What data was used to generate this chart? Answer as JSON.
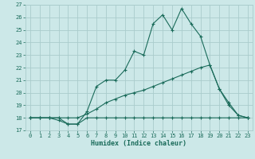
{
  "xlabel": "Humidex (Indice chaleur)",
  "bg_color": "#cce8e8",
  "grid_color": "#aacccc",
  "line_color": "#1a6b5a",
  "xlim": [
    -0.5,
    23.5
  ],
  "ylim": [
    17,
    27
  ],
  "xticks": [
    0,
    1,
    2,
    3,
    4,
    5,
    6,
    7,
    8,
    9,
    10,
    11,
    12,
    13,
    14,
    15,
    16,
    17,
    18,
    19,
    20,
    21,
    22,
    23
  ],
  "yticks": [
    17,
    18,
    19,
    20,
    21,
    22,
    23,
    24,
    25,
    26,
    27
  ],
  "line1_x": [
    0,
    1,
    2,
    3,
    4,
    5,
    6,
    7,
    8,
    9,
    10,
    11,
    12,
    13,
    14,
    15,
    16,
    17,
    18,
    19,
    20,
    21,
    22,
    23
  ],
  "line1_y": [
    18,
    18,
    18,
    17.8,
    17.5,
    17.5,
    18,
    18,
    18,
    18,
    18,
    18,
    18,
    18,
    18,
    18,
    18,
    18,
    18,
    18,
    18,
    18,
    18,
    18
  ],
  "line2_x": [
    0,
    1,
    2,
    3,
    4,
    5,
    6,
    7,
    8,
    9,
    10,
    11,
    12,
    13,
    14,
    15,
    16,
    17,
    18,
    19,
    20,
    21,
    22,
    23
  ],
  "line2_y": [
    18,
    18,
    18,
    18,
    18,
    18,
    18.3,
    18.7,
    19.2,
    19.5,
    19.8,
    20.0,
    20.2,
    20.5,
    20.8,
    21.1,
    21.4,
    21.7,
    22.0,
    22.2,
    20.3,
    19.0,
    18.2,
    18
  ],
  "line3_x": [
    0,
    1,
    2,
    3,
    4,
    5,
    6,
    7,
    8,
    9,
    10,
    11,
    12,
    13,
    14,
    15,
    16,
    17,
    18,
    19,
    20,
    21,
    22,
    23
  ],
  "line3_y": [
    18,
    18,
    18,
    18,
    17.5,
    17.5,
    18.5,
    20.5,
    21.0,
    21.0,
    21.8,
    23.3,
    23.0,
    25.5,
    26.2,
    25.0,
    26.7,
    25.5,
    24.5,
    22.2,
    20.3,
    19.2,
    18.2,
    18
  ]
}
